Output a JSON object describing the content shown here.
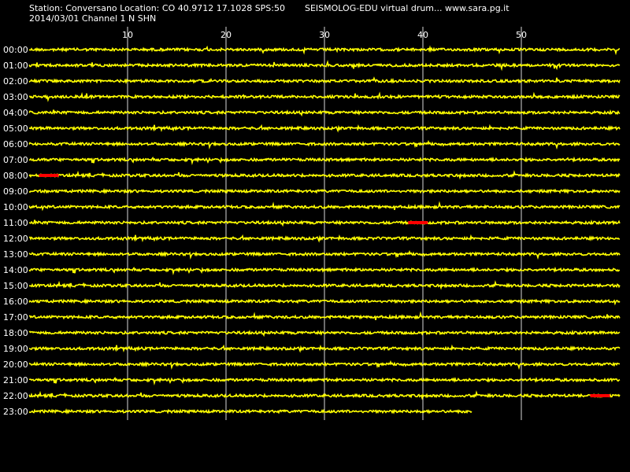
{
  "header": {
    "station_line": "Station: Conversano Location: CO 40.9712 17.1028 SPS:50",
    "date_channel_line": "2014/03/01  Channel 1 N SHN",
    "product_line": "SEISMOLOG-EDU virtual drum... www.sara.pg.it"
  },
  "minute_ticks": [
    "10",
    "20",
    "30",
    "40",
    "50"
  ],
  "hour_labels": [
    "00:00",
    "01:00",
    "02:00",
    "03:00",
    "04:00",
    "05:00",
    "06:00",
    "07:00",
    "08:00",
    "09:00",
    "10:00",
    "11:00",
    "12:00",
    "13:00",
    "14:00",
    "15:00",
    "16:00",
    "17:00",
    "18:00",
    "19:00",
    "20:00",
    "21:00",
    "22:00",
    "23:00"
  ],
  "colors": {
    "background": "#000000",
    "trace": "#ffff00",
    "event": "#ff0000",
    "grid": "#ffffff",
    "text": "#ffffff"
  },
  "drum_data": {
    "minutes_per_line": 60,
    "last_line_end_minute": 45,
    "events": [
      {
        "hour": "08:00",
        "start_minute": 1,
        "end_minute": 3
      },
      {
        "hour": "11:00",
        "start_minute": 38.5,
        "end_minute": 40.5
      },
      {
        "hour": "22:00",
        "start_minute": 57,
        "end_minute": 59
      }
    ]
  }
}
